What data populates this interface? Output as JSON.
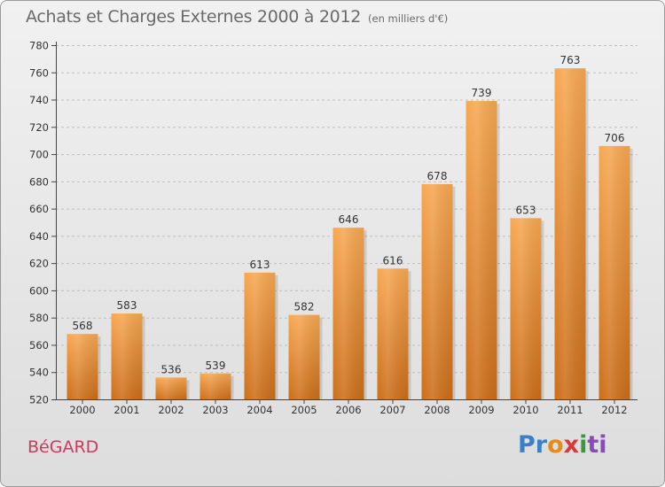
{
  "header": {
    "title": "Achats et Charges Externes 2000 à 2012",
    "unit": "(en milliers d'€)"
  },
  "footer": {
    "commune": "BéGARD",
    "logo_parts": [
      "Pr",
      "o",
      "x",
      "i",
      "ti"
    ]
  },
  "colors": {
    "bar_light": "#f7a852",
    "bar_dark": "#cc6e1a",
    "axis": "#444444",
    "grid": "#bfbfbf",
    "text": "#333333"
  },
  "chart_data": {
    "type": "bar",
    "categories": [
      "2000",
      "2001",
      "2002",
      "2003",
      "2004",
      "2005",
      "2006",
      "2007",
      "2008",
      "2009",
      "2010",
      "2011",
      "2012"
    ],
    "values": [
      568,
      583,
      536,
      539,
      613,
      582,
      646,
      616,
      678,
      739,
      653,
      763,
      706
    ],
    "ylim": [
      520,
      780
    ],
    "yticks": [
      520,
      540,
      560,
      580,
      600,
      620,
      640,
      660,
      680,
      700,
      720,
      740,
      760,
      780
    ],
    "grid": true,
    "data_labels": true
  }
}
